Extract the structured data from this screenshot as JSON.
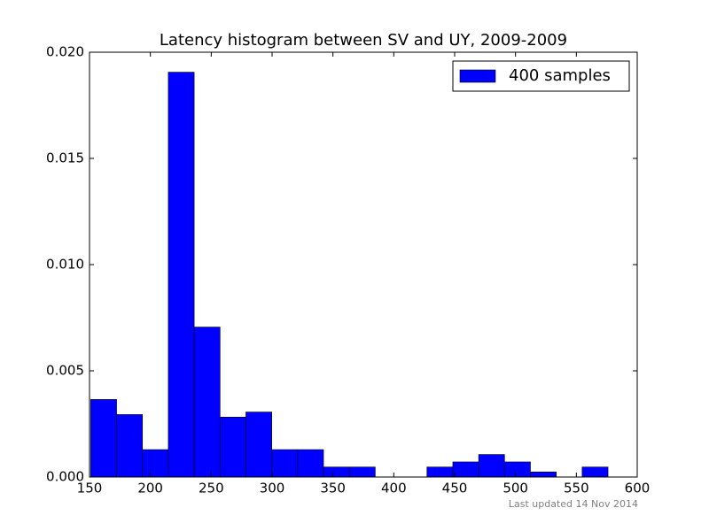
{
  "chart_data": {
    "type": "histogram",
    "title": "Latency histogram between SV and UY, 2009-2009",
    "bins": [
      151,
      172.25,
      193.5,
      214.75,
      236,
      257.25,
      278.5,
      299.75,
      321,
      342.25,
      363.5,
      384.75,
      406,
      427.25,
      448.5,
      469.75,
      491,
      512.25,
      533.5,
      554.75,
      576
    ],
    "series": [
      {
        "name": "400 samples",
        "color": "#0000ff",
        "values": [
          0.00365,
          0.00294,
          0.00129,
          0.01906,
          0.00706,
          0.00282,
          0.00306,
          0.00129,
          0.00129,
          0.00047,
          0.00047,
          0,
          0,
          0.00047,
          0.00071,
          0.00106,
          0.00071,
          0.00024,
          0,
          0.00047
        ]
      }
    ],
    "xlim": [
      150,
      600
    ],
    "xticks": [
      150,
      200,
      250,
      300,
      350,
      400,
      450,
      500,
      550,
      600
    ],
    "ylim": [
      0,
      0.02
    ],
    "yticks": [
      {
        "value": 0,
        "label": "0.000"
      },
      {
        "value": 0.005,
        "label": "0.005"
      },
      {
        "value": 0.01,
        "label": "0.010"
      },
      {
        "value": 0.015,
        "label": "0.015"
      },
      {
        "value": 0.02,
        "label": "0.020"
      }
    ],
    "legend": "upper right",
    "annotation": "Last updated 14 Nov 2014"
  }
}
